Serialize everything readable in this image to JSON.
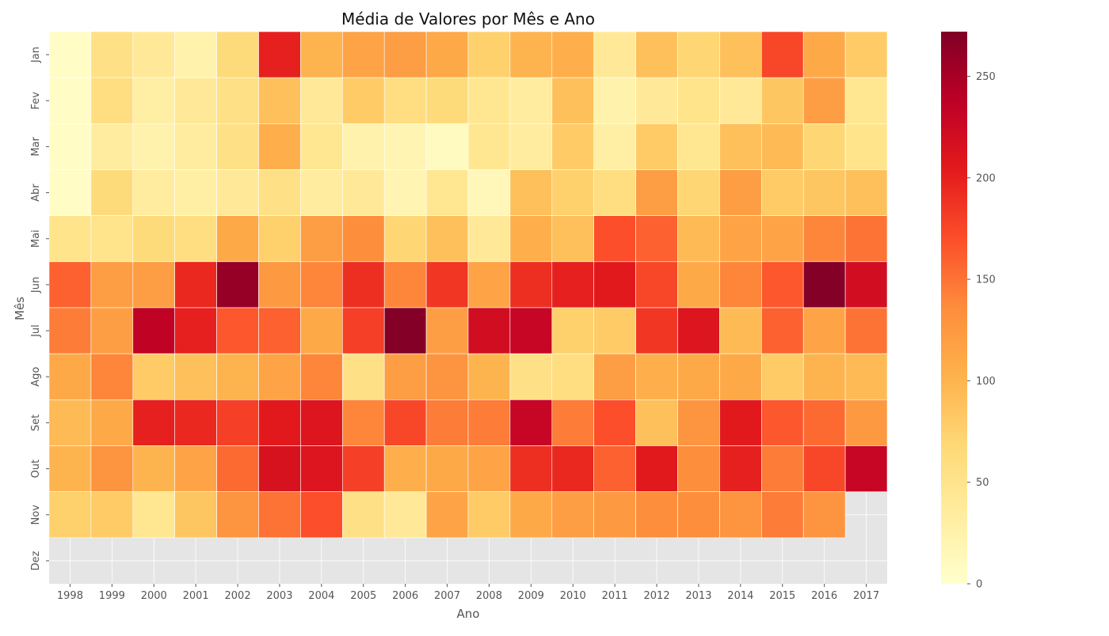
{
  "chart_data": {
    "type": "heatmap",
    "title": "Média de Valores por Mês e Ano",
    "xlabel": "Ano",
    "ylabel": "Mês",
    "x_categories": [
      "1998",
      "1999",
      "2000",
      "2001",
      "2002",
      "2003",
      "2004",
      "2005",
      "2006",
      "2007",
      "2008",
      "2009",
      "2010",
      "2011",
      "2012",
      "2013",
      "2014",
      "2015",
      "2016",
      "2017"
    ],
    "y_categories": [
      "Jan",
      "Fev",
      "Mar",
      "Abr",
      "Mai",
      "Jun",
      "Jul",
      "Ago",
      "Set",
      "Out",
      "Nov",
      "Dez"
    ],
    "values": [
      [
        5,
        55,
        40,
        25,
        65,
        200,
        100,
        115,
        120,
        110,
        75,
        100,
        105,
        40,
        90,
        70,
        90,
        175,
        110,
        80
      ],
      [
        5,
        60,
        30,
        40,
        55,
        90,
        40,
        80,
        60,
        65,
        45,
        35,
        90,
        25,
        40,
        50,
        40,
        85,
        120,
        45
      ],
      [
        5,
        35,
        25,
        35,
        55,
        105,
        45,
        25,
        20,
        10,
        45,
        35,
        80,
        30,
        80,
        45,
        90,
        95,
        70,
        50
      ],
      [
        5,
        65,
        35,
        30,
        40,
        55,
        35,
        40,
        20,
        45,
        15,
        90,
        75,
        60,
        120,
        70,
        120,
        80,
        85,
        90
      ],
      [
        50,
        50,
        65,
        60,
        110,
        75,
        120,
        135,
        70,
        90,
        40,
        105,
        90,
        170,
        160,
        95,
        115,
        115,
        140,
        150
      ],
      [
        160,
        120,
        120,
        195,
        260,
        125,
        140,
        190,
        140,
        185,
        115,
        190,
        200,
        205,
        175,
        110,
        140,
        165,
        270,
        220
      ],
      [
        145,
        120,
        235,
        200,
        165,
        160,
        110,
        180,
        270,
        120,
        220,
        230,
        75,
        80,
        185,
        210,
        95,
        160,
        115,
        150
      ],
      [
        110,
        140,
        80,
        90,
        100,
        115,
        140,
        55,
        120,
        130,
        100,
        55,
        60,
        120,
        105,
        110,
        110,
        80,
        100,
        95
      ],
      [
        95,
        110,
        200,
        195,
        180,
        205,
        210,
        140,
        175,
        145,
        145,
        230,
        145,
        170,
        90,
        130,
        205,
        165,
        155,
        125
      ],
      [
        100,
        130,
        100,
        115,
        155,
        215,
        210,
        180,
        105,
        110,
        115,
        190,
        195,
        160,
        205,
        135,
        200,
        145,
        175,
        230
      ],
      [
        75,
        80,
        45,
        85,
        130,
        150,
        170,
        55,
        40,
        115,
        80,
        110,
        120,
        125,
        135,
        135,
        130,
        145,
        130,
        null
      ],
      [
        null,
        null,
        null,
        null,
        null,
        null,
        null,
        null,
        null,
        null,
        null,
        null,
        null,
        null,
        null,
        null,
        null,
        null,
        null,
        null
      ]
    ],
    "colorbar": {
      "min": 0,
      "max": 272,
      "ticks": [
        0,
        50,
        100,
        150,
        200,
        250
      ]
    },
    "colormap": "YlOrRd",
    "missing_color": "#e5e5e5",
    "cell_border_color": "#ffffff",
    "axis_text_color": "#555555",
    "title_color": "#111111"
  }
}
